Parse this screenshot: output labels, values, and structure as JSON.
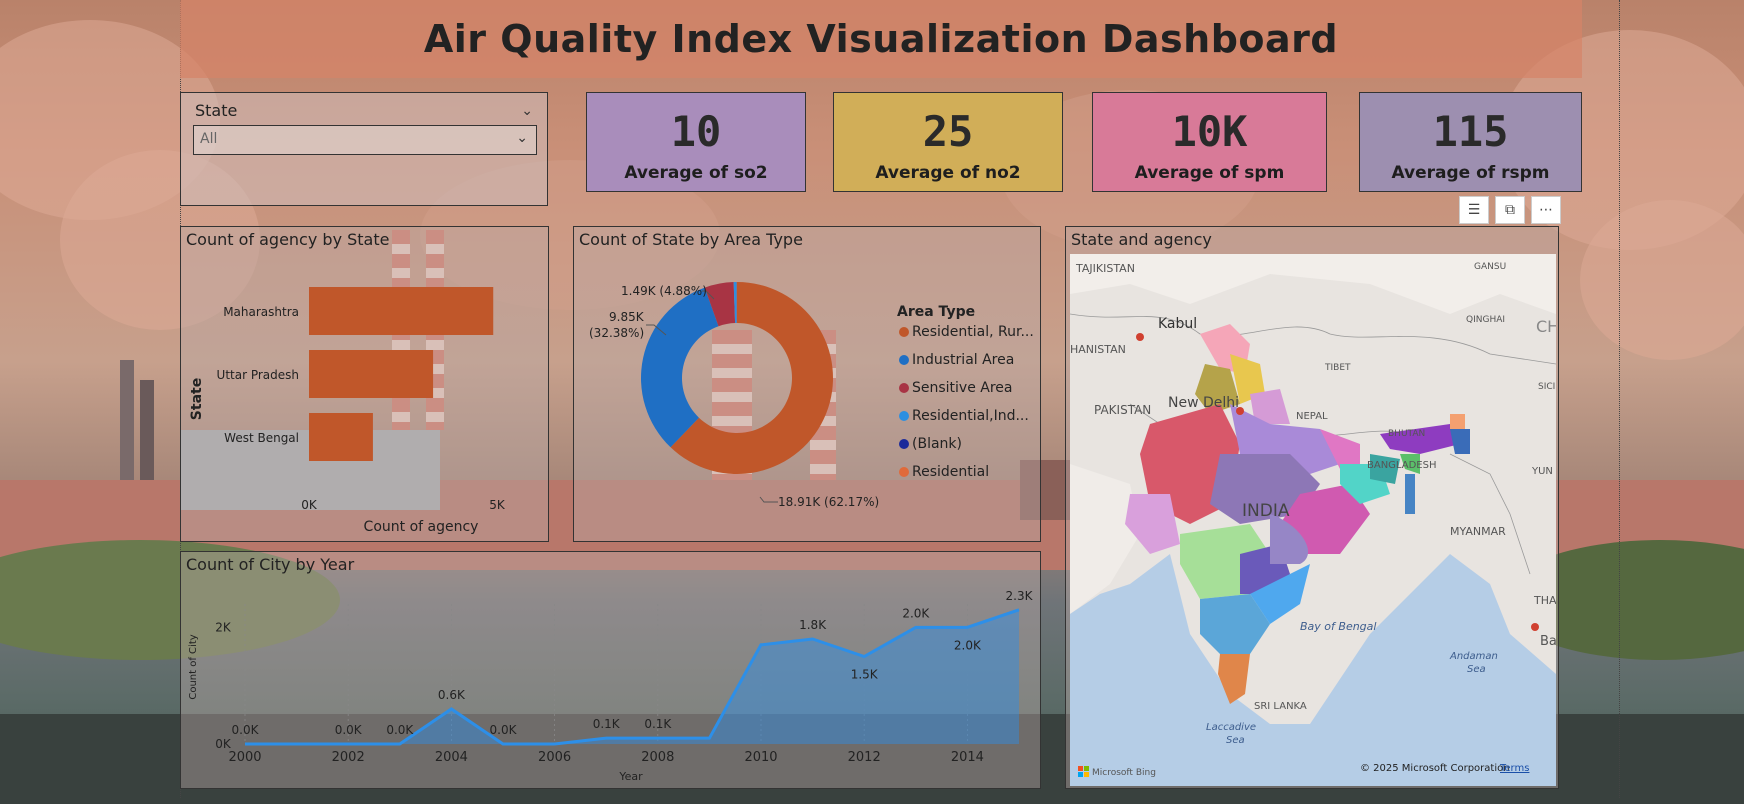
{
  "title": "Air Quality Index Visualization Dashboard",
  "slicer": {
    "label": "State",
    "value": "All"
  },
  "kpis": [
    {
      "value": "10",
      "caption": "Average of so2",
      "color": "#a98dbb"
    },
    {
      "value": "25",
      "caption": "Average of no2",
      "color": "#d1ae58"
    },
    {
      "value": "10K",
      "caption": "Average of spm",
      "color": "#d87a98"
    },
    {
      "value": "115",
      "caption": "Average of rspm",
      "color": "#9d8fb0"
    }
  ],
  "agency_chart": {
    "title": "Count of agency by State",
    "ylabel": "State",
    "xlabel": "Count of agency",
    "x_ticks": [
      "0K",
      "5K"
    ],
    "chart_data": {
      "type": "bar",
      "orientation": "horizontal",
      "categories": [
        "Maharashtra",
        "Uttar Pradesh",
        "West Bengal"
      ],
      "values": [
        4900,
        3300,
        1700
      ],
      "xlim": [
        0,
        5000
      ],
      "color": "#c0572a"
    }
  },
  "area_chart": {
    "title": "Count of State by Area Type",
    "legend_title": "Area Type",
    "legend": [
      {
        "label": "Residential, Rur...",
        "color": "#c0572a"
      },
      {
        "label": "Industrial Area",
        "color": "#1f6fc4"
      },
      {
        "label": "Sensitive Area",
        "color": "#a83444"
      },
      {
        "label": "Residential,Ind...",
        "color": "#2d8fe0"
      },
      {
        "label": "(Blank)",
        "color": "#1a2a9a"
      },
      {
        "label": "Residential",
        "color": "#e06a3a"
      }
    ],
    "labels": {
      "l1": "18.91K (62.17%)",
      "l2a": "9.85K",
      "l2b": "(32.38%)",
      "l3": "1.49K (4.88%)"
    },
    "chart_data": {
      "type": "pie",
      "donut": true,
      "slices": [
        {
          "label": "Residential, Rur...",
          "value": 18910,
          "percent": 62.17
        },
        {
          "label": "Industrial Area",
          "value": 9850,
          "percent": 32.38
        },
        {
          "label": "Sensitive Area",
          "value": 1490,
          "percent": 4.88
        },
        {
          "label": "Residential,Ind...",
          "value": 150,
          "percent": 0.49
        },
        {
          "label": "(Blank)",
          "value": 10,
          "percent": 0.03
        },
        {
          "label": "Residential",
          "value": 10,
          "percent": 0.03
        }
      ]
    }
  },
  "map": {
    "title": "State and agency",
    "labels": {
      "tajikistan": "TAJIKISTAN",
      "gansu": "GANSU",
      "kabul": "Kabul",
      "hanistan": "HANISTAN",
      "qinghai": "QINGHAI",
      "ch": "CH",
      "tibet": "TIBET",
      "sic": "SICI",
      "pakistan": "PAKISTAN",
      "newdelhi": "New Delhi",
      "nepal": "NEPAL",
      "bhutan": "BHUTAN",
      "bangladesh": "BANGLADESH",
      "india": "INDIA",
      "yun": "YUN",
      "myanmar": "MYANMAR",
      "thai": "THAI",
      "bay": "Bay of Bengal",
      "andaman1": "Andaman",
      "andaman2": "Sea",
      "ba": "Ba",
      "srilanka": "SRI LANKA",
      "laccadive1": "Laccadive",
      "laccadive2": "Sea"
    },
    "attribution": "Microsoft Bing",
    "copyright": "© 2025 Microsoft Corporation",
    "terms": "Terms"
  },
  "city_chart": {
    "title": "Count of City by Year",
    "xlabel": "Year",
    "ylabel": "Count of City",
    "y_ticks": [
      "0K",
      "2K"
    ],
    "x_ticks": [
      "2000",
      "2002",
      "2004",
      "2006",
      "2008",
      "2010",
      "2012",
      "2014"
    ],
    "chart_data": {
      "type": "area",
      "x": [
        2000,
        2001,
        2002,
        2003,
        2004,
        2005,
        2006,
        2007,
        2008,
        2009,
        2010,
        2011,
        2012,
        2013,
        2014,
        2015
      ],
      "values": [
        0.0,
        0.0,
        0.0,
        0.0,
        0.6,
        0.0,
        0.0,
        0.1,
        0.1,
        0.1,
        1.7,
        1.8,
        1.5,
        2.0,
        2.0,
        2.3
      ],
      "data_labels": [
        {
          "x": 2000,
          "text": "0.0K"
        },
        {
          "x": 2002,
          "text": "0.0K"
        },
        {
          "x": 2003,
          "text": "0.0K"
        },
        {
          "x": 2004,
          "text": "0.6K"
        },
        {
          "x": 2005,
          "text": "0.0K"
        },
        {
          "x": 2007,
          "text": "0.1K"
        },
        {
          "x": 2008,
          "text": "0.1K"
        },
        {
          "x": 2011,
          "text": "1.8K"
        },
        {
          "x": 2012,
          "text": "1.5K"
        },
        {
          "x": 2013,
          "text": "2.0K"
        },
        {
          "x": 2014,
          "text": "2.0K"
        },
        {
          "x": 2015,
          "text": "2.3K"
        }
      ],
      "xlim": [
        2000,
        2015
      ],
      "ylim": [
        0,
        2.4
      ],
      "unit": "K",
      "color": "#2d8fe8"
    }
  }
}
